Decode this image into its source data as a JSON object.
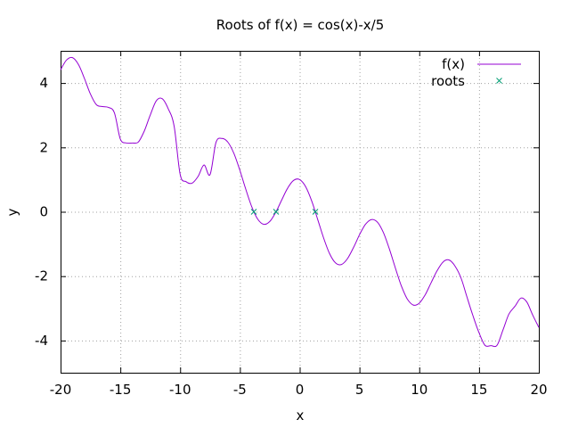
{
  "chart_data": {
    "type": "line",
    "title": "Roots of f(x) = cos(x)-x/5",
    "xlabel": "x",
    "ylabel": "y",
    "xlim": [
      -20,
      20
    ],
    "ylim": [
      -5,
      5
    ],
    "xticks": [
      -20,
      -15,
      -10,
      -5,
      0,
      5,
      10,
      15,
      20
    ],
    "yticks": [
      -4,
      -2,
      0,
      2,
      4
    ],
    "grid": true,
    "legend_position": "top-right",
    "series": [
      {
        "name": "f(x)",
        "kind": "line",
        "color": "#9400d3",
        "x": [
          -20,
          -19.5,
          -19,
          -18.5,
          -18,
          -17.5,
          -17,
          -16.5,
          -16,
          -15.5,
          -15,
          -14.5,
          -14,
          -13.5,
          -13,
          -12.5,
          -12,
          -11.5,
          -11,
          -10.5,
          -10,
          -9.5,
          -9,
          -8.5,
          -8,
          -7.5,
          -7,
          -6.5,
          -6,
          -5.5,
          -5,
          -4.5,
          -4,
          -3.5,
          -3,
          -2.5,
          -2,
          -1.5,
          -1,
          -0.5,
          0,
          0.5,
          1,
          1.5,
          2,
          2.5,
          3,
          3.5,
          4,
          4.5,
          5,
          5.5,
          6,
          6.5,
          7,
          7.5,
          8,
          8.5,
          9,
          9.5,
          10,
          10.5,
          11,
          11.5,
          12,
          12.5,
          13,
          13.5,
          14,
          14.5,
          15,
          15.5,
          16,
          16.5,
          17,
          17.5,
          18,
          18.5,
          19,
          19.5,
          20
        ],
        "y": [
          4.408,
          4.716,
          4.789,
          4.574,
          4.14,
          3.655,
          3.325,
          3.268,
          3.243,
          3.077,
          2.259,
          2.139,
          2.137,
          2.166,
          2.507,
          3.003,
          3.444,
          3.512,
          3.205,
          2.66,
          1.161,
          0.933,
          0.889,
          1.098,
          1.454,
          1.153,
          2.154,
          2.277,
          2.16,
          1.809,
          1.284,
          0.689,
          0.146,
          -0.236,
          -0.39,
          -0.301,
          -0.016,
          0.371,
          0.74,
          0.978,
          1.0,
          0.778,
          0.34,
          -0.229,
          -0.816,
          -1.301,
          -1.59,
          -1.636,
          -1.454,
          -1.111,
          -0.716,
          -0.391,
          -0.24,
          -0.323,
          -0.646,
          -1.154,
          -1.745,
          -2.302,
          -2.711,
          -2.897,
          -2.839,
          -2.575,
          -2.196,
          -1.826,
          -1.556,
          -1.5,
          -1.693,
          -2.064,
          -2.663,
          -3.241,
          -3.76,
          -4.151,
          -4.158,
          -4.149,
          -3.675,
          -3.177,
          -2.94,
          -2.682,
          -2.807,
          -3.219,
          -3.592
        ]
      },
      {
        "name": "roots",
        "kind": "points",
        "marker": "x",
        "color": "#009e73",
        "x": [
          -3.837,
          -1.977,
          1.307
        ],
        "y": [
          0,
          0,
          0
        ]
      }
    ]
  }
}
